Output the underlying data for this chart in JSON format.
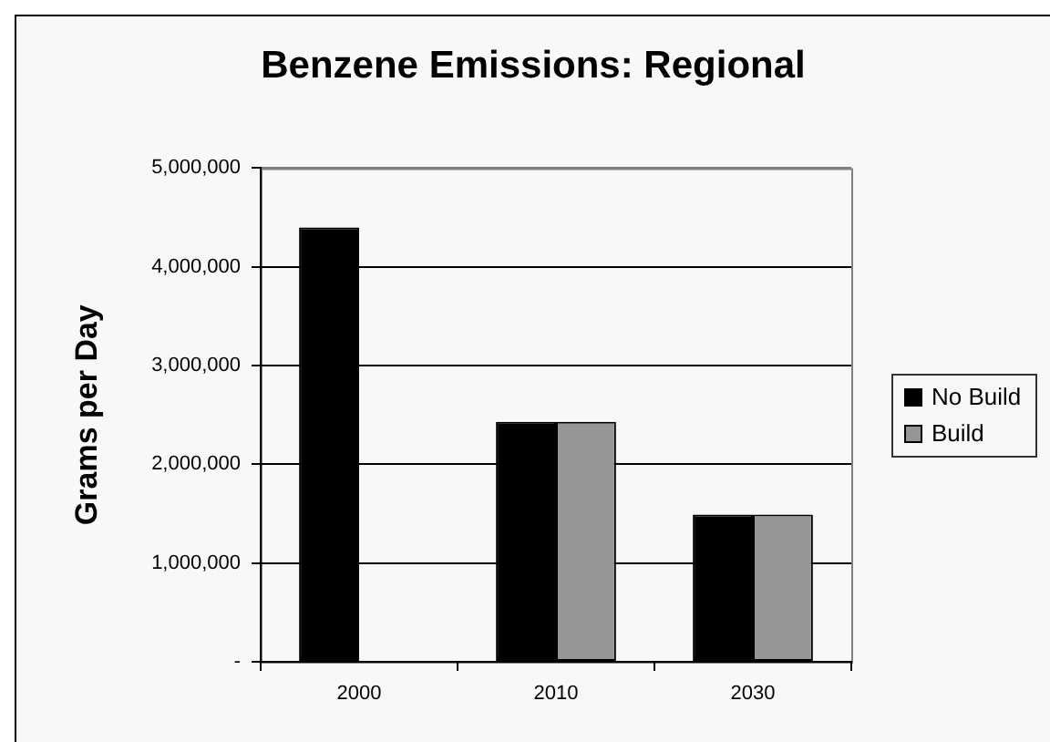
{
  "chart_data": {
    "type": "bar",
    "title": "Benzene Emissions: Regional",
    "ylabel": "Grams per Day",
    "categories": [
      "2000",
      "2010",
      "2030"
    ],
    "series": [
      {
        "name": "No Build",
        "color": "#000000",
        "values": [
          4400000,
          2430000,
          1490000
        ]
      },
      {
        "name": "Build",
        "color": "#969696",
        "values": [
          null,
          2430000,
          1490000
        ]
      }
    ],
    "ylim": [
      0,
      5000000
    ],
    "yticks": [
      {
        "value": 0,
        "label": "-"
      },
      {
        "value": 1000000,
        "label": "1,000,000"
      },
      {
        "value": 2000000,
        "label": "2,000,000"
      },
      {
        "value": 3000000,
        "label": "3,000,000"
      },
      {
        "value": 4000000,
        "label": "4,000,000"
      },
      {
        "value": 5000000,
        "label": "5,000,000"
      }
    ],
    "grid": "y",
    "legend": "right"
  }
}
